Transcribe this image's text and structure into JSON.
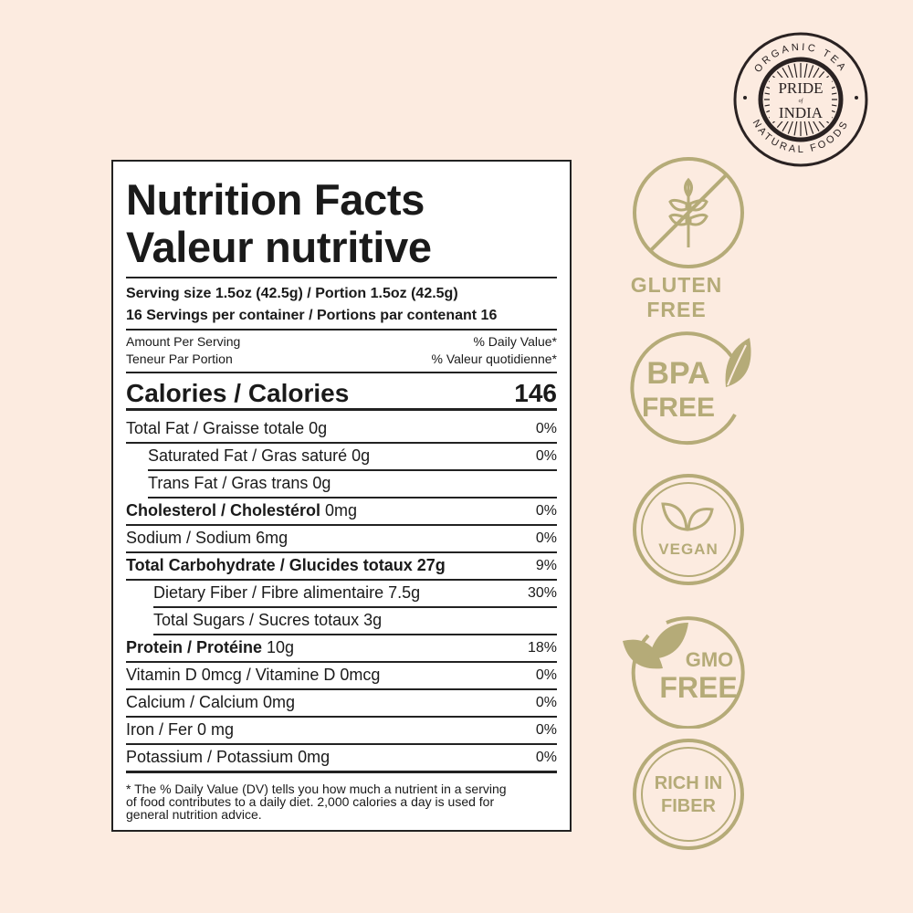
{
  "logo": {
    "top_text": "ORGANIC TEA",
    "bottom_text": "NATURAL FOODS",
    "brand_line1": "PRIDE",
    "brand_of": "of",
    "brand_line2": "INDIA"
  },
  "label": {
    "title_en": "Nutrition Facts",
    "title_fr": "Valeur nutritive",
    "serving_size": "Serving size 1.5oz (42.5g) / Portion 1.5oz (42.5g)",
    "servings_per_container": "16 Servings per container / Portions par contenant 16",
    "amount_per_serving": "Amount Per Serving",
    "teneur_par_portion": "Teneur Par Portion",
    "daily_value": "% Daily Value*",
    "valeur_quotidienne": "% Valeur quotidienne*",
    "calories_label": "Calories / Calories",
    "calories_value": "146",
    "rows": [
      {
        "bold": "",
        "text": "Total Fat / Graisse totale 0g",
        "dv": "0%"
      },
      {
        "bold": "",
        "text": "Saturated Fat / Gras saturé 0g",
        "dv": "0%"
      },
      {
        "bold": "",
        "text": "Trans Fat / Gras trans 0g",
        "dv": ""
      },
      {
        "bold": "Cholesterol / Cholestérol",
        "text": " 0mg",
        "dv": "0%"
      },
      {
        "bold": "",
        "text": "Sodium / Sodium 6mg",
        "dv": "0%"
      },
      {
        "bold": "Total Carbohydrate / Glucides totaux 27g",
        "text": "",
        "dv": "9%"
      },
      {
        "bold": "",
        "text": "Dietary Fiber / Fibre alimentaire 7.5g",
        "dv": "30%"
      },
      {
        "bold": "",
        "text": "Total Sugars / Sucres totaux 3g",
        "dv": ""
      },
      {
        "bold": "Protein / Protéine",
        "text": " 10g",
        "dv": "18%"
      },
      {
        "bold": "",
        "text": "Vitamin D 0mcg / Vitamine D 0mcg",
        "dv": "0%"
      },
      {
        "bold": "",
        "text": "Calcium / Calcium 0mg",
        "dv": "0%"
      },
      {
        "bold": "",
        "text": "Iron / Fer 0 mg",
        "dv": "0%"
      },
      {
        "bold": "",
        "text": "Potassium / Potassium 0mg",
        "dv": "0%"
      }
    ],
    "footnote_1": "* The % Daily Value (DV) tells you how much a nutrient in a serving",
    "footnote_2": "of food contributes to a daily diet. 2,000 calories a day is used for",
    "footnote_3": "general nutrition advice."
  },
  "badges": {
    "color": "#b5ab78",
    "gluten": {
      "line1": "GLUTEN",
      "line2": "FREE",
      "icon": "wheat-crossed-icon"
    },
    "bpa": {
      "line1": "BPA",
      "line2": "FREE",
      "icon": "leaf-icon"
    },
    "vegan": {
      "label": "VEGAN",
      "icon": "leaves-icon"
    },
    "gmo": {
      "line1": "GMO",
      "line2": "FREE",
      "icon": "leaves-icon"
    },
    "fiber": {
      "line1": "RICH IN",
      "line2": "FIBER"
    }
  }
}
